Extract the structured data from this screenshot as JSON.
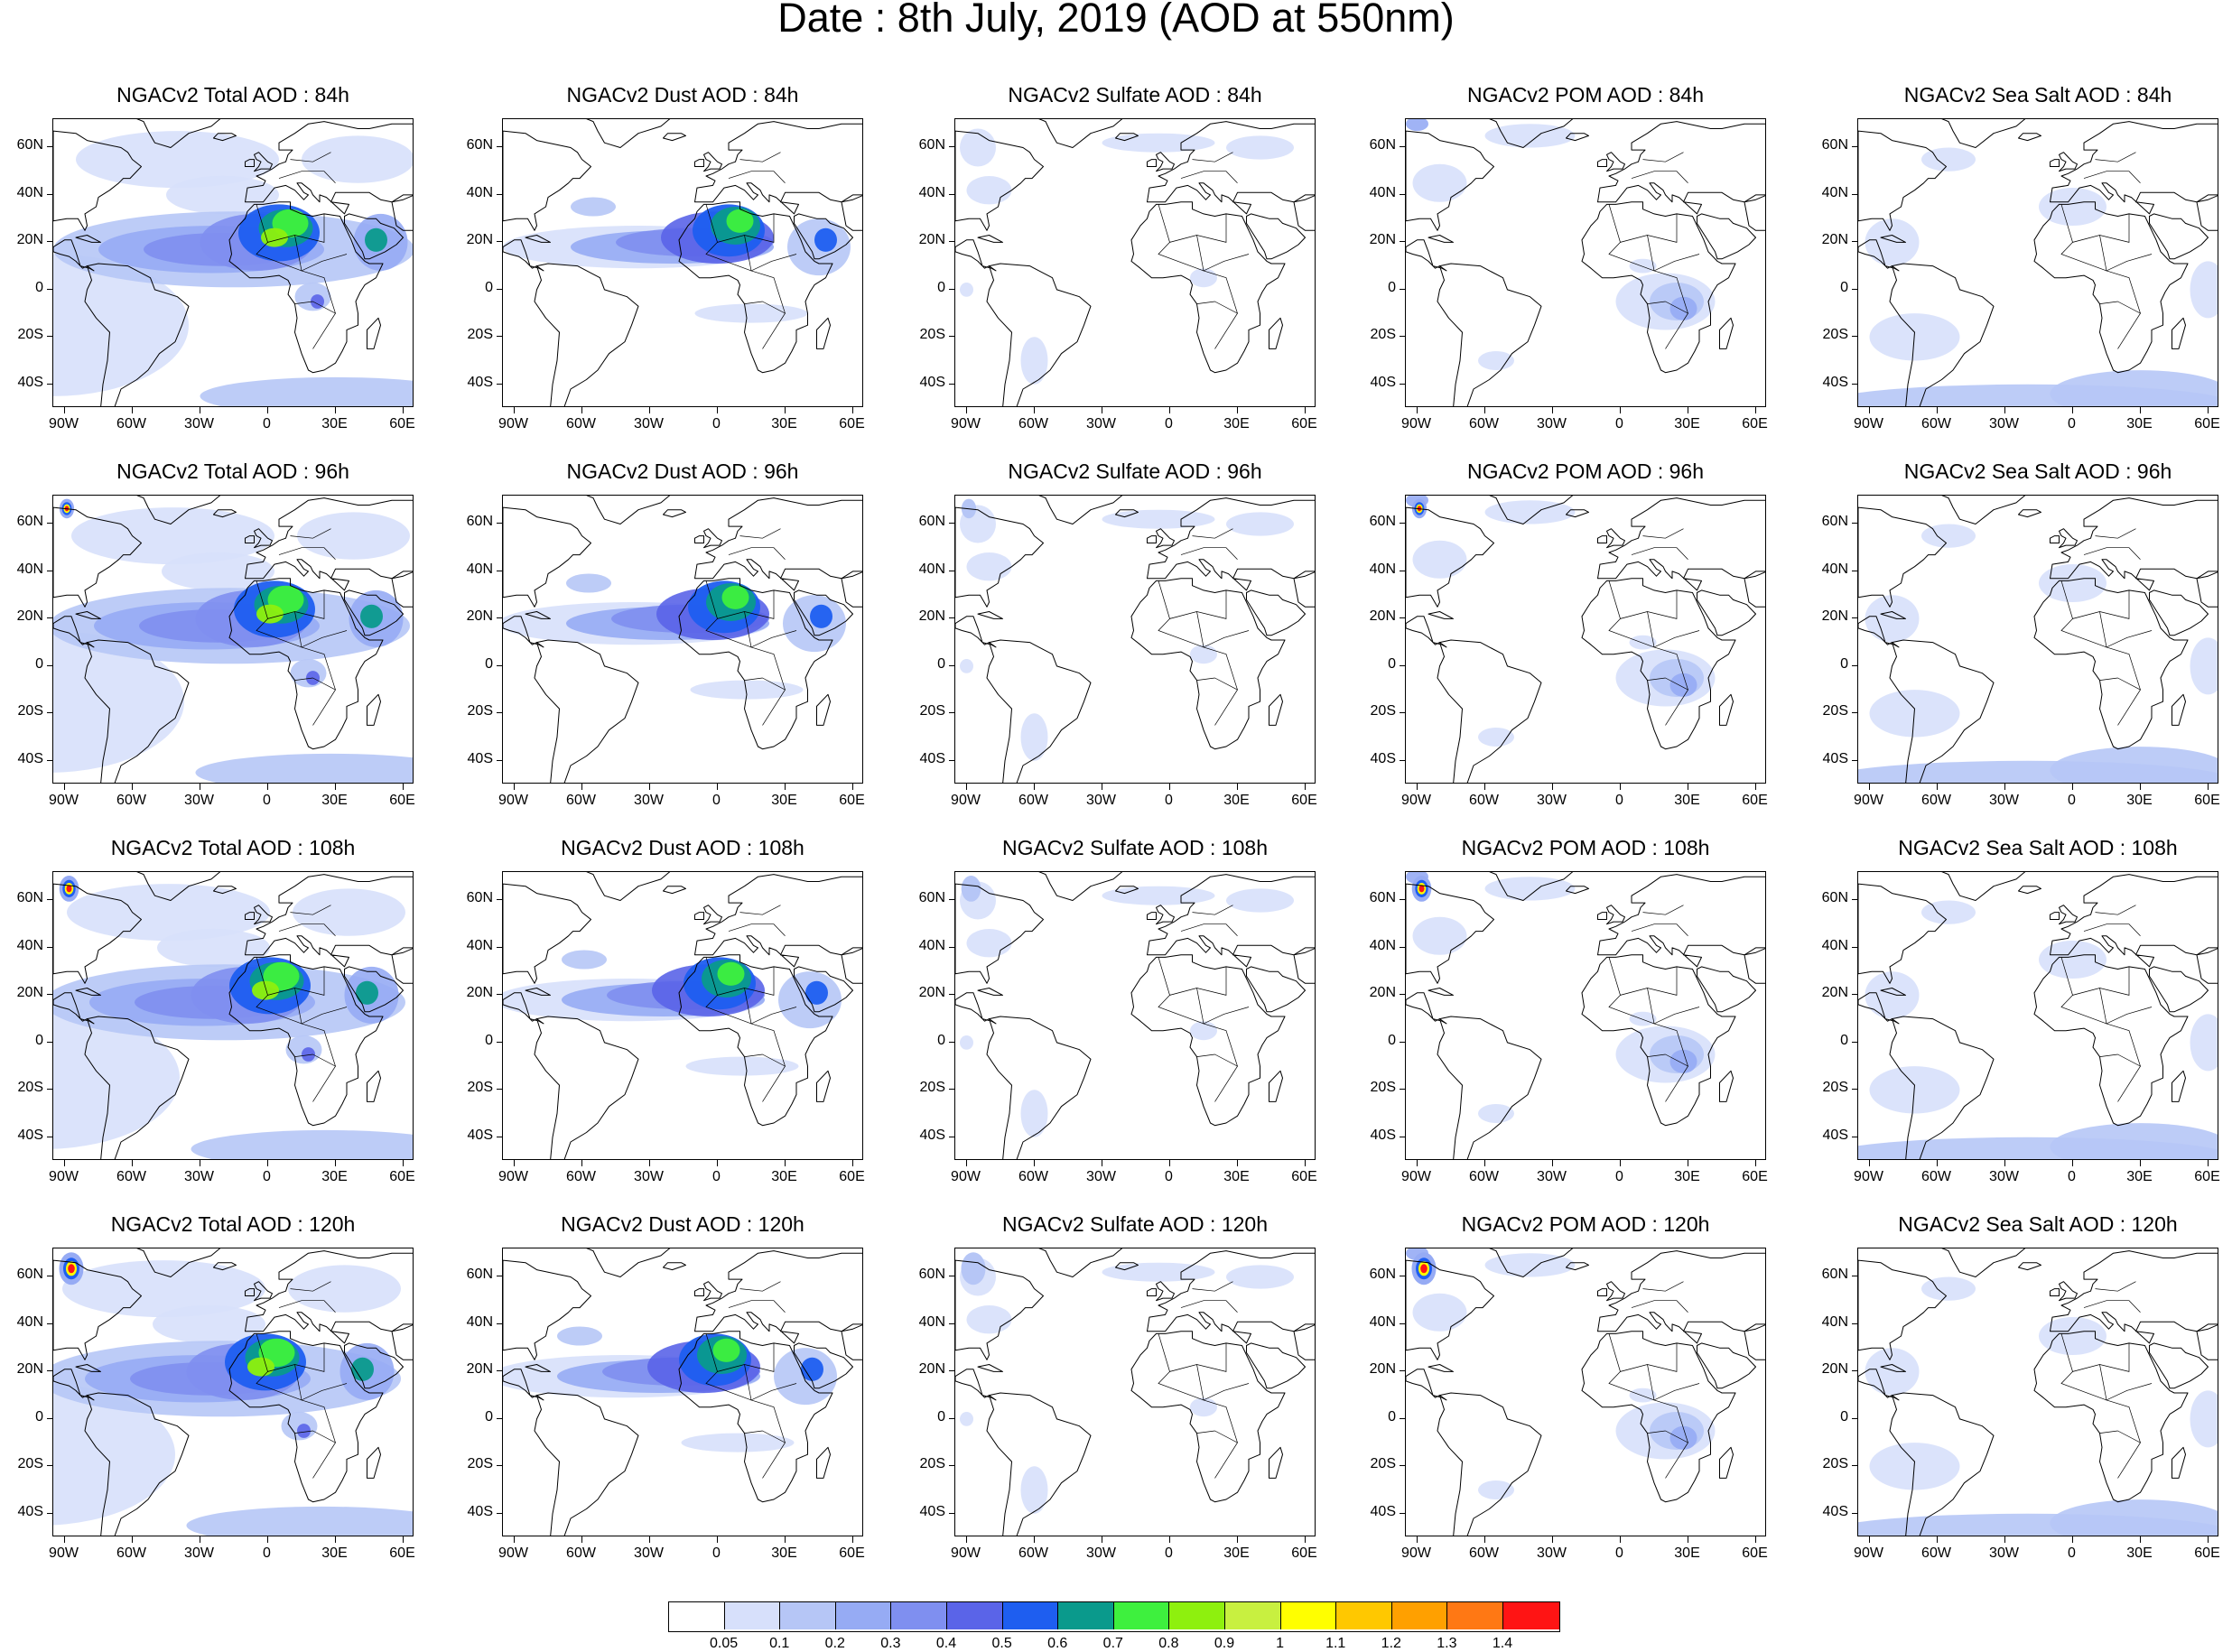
{
  "title": "Date : 8th July, 2019 (AOD at 550nm)",
  "lat_labels": [
    "60N",
    "40N",
    "20N",
    "0",
    "20S",
    "40S"
  ],
  "lon_labels": [
    "90W",
    "60W",
    "30W",
    "0",
    "30E",
    "60E"
  ],
  "rows": [
    {
      "lead": "84h",
      "titles": [
        "NGACv2 Total AOD : 84h",
        "NGACv2 Dust AOD : 84h",
        "NGACv2 Sulfate AOD : 84h",
        "NGACv2 POM AOD : 84h",
        "NGACv2 Sea Salt AOD : 84h"
      ]
    },
    {
      "lead": "96h",
      "titles": [
        "NGACv2 Total AOD : 96h",
        "NGACv2 Dust AOD : 96h",
        "NGACv2 Sulfate AOD : 96h",
        "NGACv2 POM AOD : 96h",
        "NGACv2 Sea Salt AOD : 96h"
      ]
    },
    {
      "lead": "108h",
      "titles": [
        "NGACv2 Total AOD : 108h",
        "NGACv2 Dust AOD : 108h",
        "NGACv2 Sulfate AOD : 108h",
        "NGACv2 POM AOD : 108h",
        "NGACv2 Sea Salt AOD : 108h"
      ]
    },
    {
      "lead": "120h",
      "titles": [
        "NGACv2 Total AOD : 120h",
        "NGACv2 Dust AOD : 120h",
        "NGACv2 Sulfate AOD : 120h",
        "NGACv2 POM AOD : 120h",
        "NGACv2 Sea Salt  AOD : 120h"
      ]
    }
  ],
  "colorbar": {
    "labels": [
      "0.05",
      "0.1",
      "0.2",
      "0.3",
      "0.4",
      "0.5",
      "0.6",
      "0.7",
      "0.8",
      "0.9",
      "1",
      "1.1",
      "1.2",
      "1.3",
      "1.4"
    ],
    "colors": [
      "#ffffff",
      "#d7e0fb",
      "#b6c6f6",
      "#96abf4",
      "#7f8ff0",
      "#5a64e8",
      "#1e5ef0",
      "#0a9a8c",
      "#3ef03e",
      "#8ef00e",
      "#c8f040",
      "#ffff00",
      "#ffc800",
      "#ffa000",
      "#ff7814",
      "#ff1414"
    ]
  },
  "land_color": "#ffffff",
  "coast_color": "#000000"
}
